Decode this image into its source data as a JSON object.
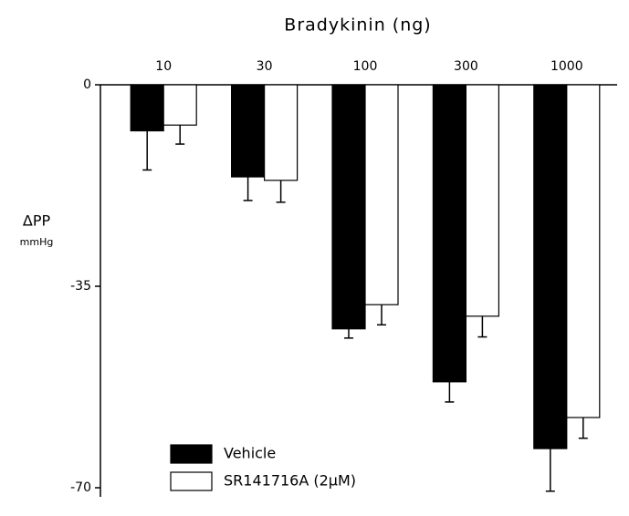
{
  "chart_data": {
    "type": "bar",
    "title": "Bradykinin (ng)",
    "ylabel": "ΔPP",
    "yunit": "mmHg",
    "categories": [
      "10",
      "30",
      "100",
      "300",
      "1000"
    ],
    "series": [
      {
        "name": "Vehicle",
        "color": "#000000",
        "values": [
          -8,
          -16,
          -42.4,
          -51.6,
          -63.2
        ],
        "errors": [
          6.8,
          4.1,
          1.6,
          3.5,
          7.4
        ]
      },
      {
        "name": "SR141716A (2μM)",
        "color": "#ffffff",
        "values": [
          -7,
          -16.6,
          -38.2,
          -40.2,
          -57.8
        ],
        "errors": [
          3.3,
          3.8,
          3.5,
          3.6,
          3.6
        ]
      }
    ],
    "ylim": [
      -70,
      0
    ],
    "yticks": [
      0,
      -35,
      -70
    ],
    "legend": "lower left"
  }
}
